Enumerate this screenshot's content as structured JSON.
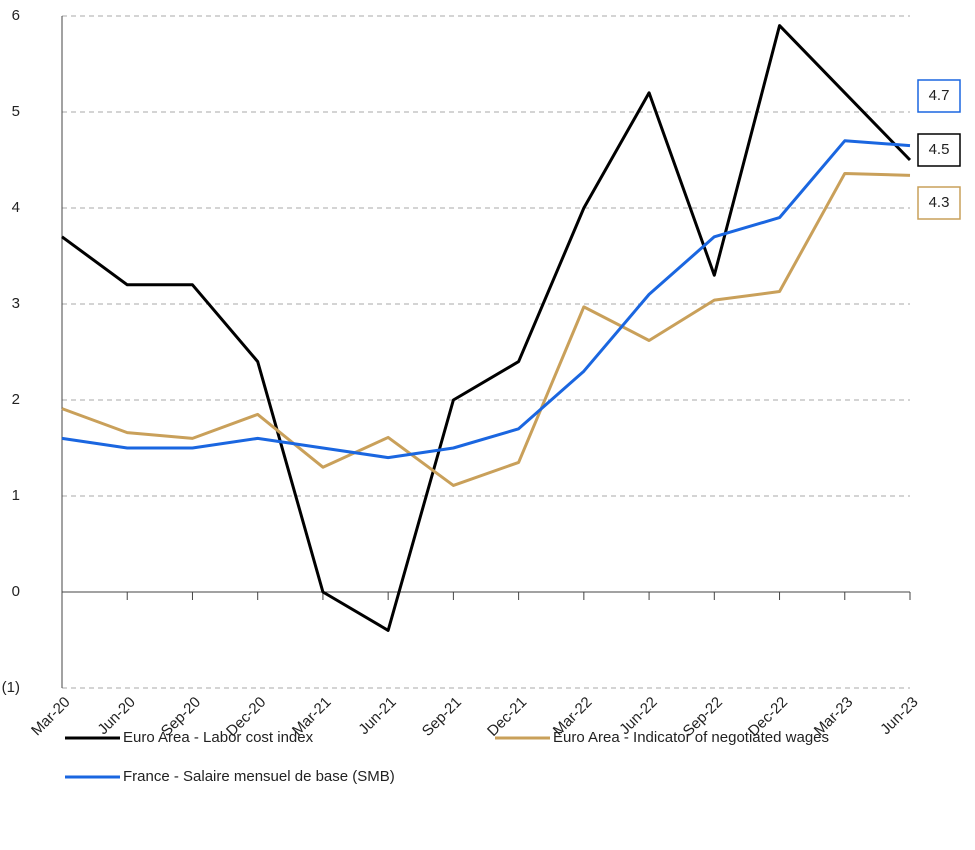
{
  "chart_data": {
    "type": "line",
    "categories": [
      "Mar-20",
      "Jun-20",
      "Sep-20",
      "Dec-20",
      "Mar-21",
      "Jun-21",
      "Sep-21",
      "Dec-21",
      "Mar-22",
      "Jun-22",
      "Sep-22",
      "Dec-22",
      "Mar-23",
      "Jun-23"
    ],
    "series": [
      {
        "name": "Euro Area - Labor cost index",
        "color": "#000000",
        "values": [
          3.7,
          3.2,
          3.2,
          2.4,
          0.0,
          -0.4,
          2.0,
          2.4,
          4.0,
          5.2,
          3.3,
          5.9,
          5.2,
          4.5
        ],
        "value_labels": [
          null,
          null,
          null,
          null,
          null,
          null,
          null,
          null,
          null,
          null,
          null,
          null,
          null,
          "4.5"
        ]
      },
      {
        "name": "Euro Area - Indicator of negotiated wages",
        "color": "#c9a05a",
        "values": [
          1.91,
          1.66,
          1.6,
          1.85,
          1.3,
          1.61,
          1.11,
          1.35,
          2.97,
          2.62,
          3.04,
          3.13,
          4.36,
          4.34
        ],
        "value_labels": [
          null,
          null,
          null,
          null,
          null,
          null,
          null,
          null,
          null,
          null,
          null,
          null,
          null,
          "4.3"
        ]
      },
      {
        "name": "France - Salaire mensuel de base (SMB)",
        "color": "#1a66e0",
        "values": [
          1.6,
          1.5,
          1.5,
          1.6,
          1.5,
          1.4,
          1.5,
          1.7,
          2.3,
          3.1,
          3.7,
          3.9,
          4.7,
          4.65
        ],
        "value_labels": [
          null,
          null,
          null,
          null,
          null,
          null,
          null,
          null,
          null,
          null,
          null,
          null,
          null,
          "4.7"
        ]
      }
    ],
    "ylim": [
      -1,
      6
    ],
    "yticks": [
      {
        "value": -1,
        "label": "(1)"
      },
      0,
      1,
      2,
      3,
      4,
      5,
      6
    ],
    "grid": true
  }
}
